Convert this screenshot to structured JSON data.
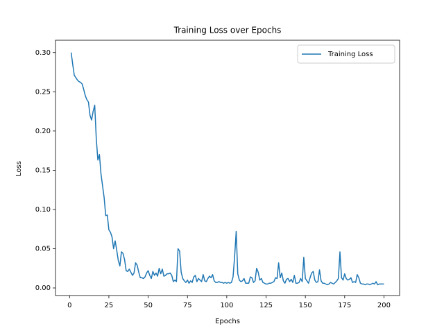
{
  "chart_data": {
    "type": "line",
    "title": "Training Loss over Epochs",
    "x_label": "Epochs",
    "y_label": "Loss",
    "x": [
      1,
      2,
      3,
      4,
      5,
      6,
      7,
      8,
      9,
      10,
      11,
      12,
      13,
      14,
      15,
      16,
      17,
      18,
      19,
      20,
      21,
      22,
      23,
      24,
      25,
      26,
      27,
      28,
      29,
      30,
      31,
      32,
      33,
      34,
      35,
      36,
      37,
      38,
      39,
      40,
      41,
      42,
      43,
      44,
      45,
      46,
      47,
      48,
      49,
      50,
      51,
      52,
      53,
      54,
      55,
      56,
      57,
      58,
      59,
      60,
      61,
      62,
      63,
      64,
      65,
      66,
      67,
      68,
      69,
      70,
      71,
      72,
      73,
      74,
      75,
      76,
      77,
      78,
      79,
      80,
      81,
      82,
      83,
      84,
      85,
      86,
      87,
      88,
      89,
      90,
      91,
      92,
      93,
      94,
      95,
      96,
      97,
      98,
      99,
      100,
      101,
      102,
      103,
      104,
      105,
      106,
      107,
      108,
      109,
      110,
      111,
      112,
      113,
      114,
      115,
      116,
      117,
      118,
      119,
      120,
      121,
      122,
      123,
      124,
      125,
      126,
      127,
      128,
      129,
      130,
      131,
      132,
      133,
      134,
      135,
      136,
      137,
      138,
      139,
      140,
      141,
      142,
      143,
      144,
      145,
      146,
      147,
      148,
      149,
      150,
      151,
      152,
      153,
      154,
      155,
      156,
      157,
      158,
      159,
      160,
      161,
      162,
      163,
      164,
      165,
      166,
      167,
      168,
      169,
      170,
      171,
      172,
      173,
      174,
      175,
      176,
      177,
      178,
      179,
      180,
      181,
      182,
      183,
      184,
      185,
      186,
      187,
      188,
      189,
      190,
      191,
      192,
      193,
      194,
      195,
      196,
      197,
      198,
      199,
      200
    ],
    "series": [
      {
        "name": "Training Loss",
        "color": "#1f77b4",
        "values": [
          0.3,
          0.285,
          0.271,
          0.268,
          0.265,
          0.263,
          0.262,
          0.26,
          0.253,
          0.245,
          0.24,
          0.237,
          0.22,
          0.214,
          0.225,
          0.233,
          0.19,
          0.163,
          0.17,
          0.145,
          0.13,
          0.115,
          0.092,
          0.093,
          0.074,
          0.071,
          0.065,
          0.05,
          0.06,
          0.048,
          0.035,
          0.028,
          0.046,
          0.044,
          0.036,
          0.022,
          0.021,
          0.024,
          0.02,
          0.016,
          0.019,
          0.032,
          0.029,
          0.02,
          0.013,
          0.013,
          0.012,
          0.014,
          0.019,
          0.022,
          0.016,
          0.012,
          0.021,
          0.016,
          0.019,
          0.015,
          0.025,
          0.018,
          0.024,
          0.015,
          0.016,
          0.018,
          0.018,
          0.019,
          0.016,
          0.008,
          0.01,
          0.008,
          0.05,
          0.047,
          0.02,
          0.012,
          0.009,
          0.007,
          0.01,
          0.006,
          0.009,
          0.007,
          0.014,
          0.016,
          0.008,
          0.012,
          0.01,
          0.008,
          0.017,
          0.009,
          0.008,
          0.012,
          0.015,
          0.013,
          0.017,
          0.009,
          0.007,
          0.007,
          0.008,
          0.007,
          0.007,
          0.006,
          0.007,
          0.006,
          0.007,
          0.006,
          0.007,
          0.014,
          0.04,
          0.072,
          0.018,
          0.01,
          0.008,
          0.009,
          0.012,
          0.006,
          0.006,
          0.006,
          0.014,
          0.013,
          0.007,
          0.009,
          0.025,
          0.02,
          0.01,
          0.012,
          0.007,
          0.006,
          0.005,
          0.005,
          0.006,
          0.006,
          0.007,
          0.008,
          0.013,
          0.012,
          0.032,
          0.013,
          0.019,
          0.009,
          0.006,
          0.011,
          0.012,
          0.008,
          0.011,
          0.007,
          0.016,
          0.006,
          0.006,
          0.007,
          0.012,
          0.008,
          0.039,
          0.012,
          0.009,
          0.006,
          0.013,
          0.019,
          0.021,
          0.01,
          0.007,
          0.008,
          0.023,
          0.009,
          0.006,
          0.006,
          0.005,
          0.004,
          0.005,
          0.007,
          0.006,
          0.005,
          0.007,
          0.009,
          0.012,
          0.046,
          0.013,
          0.01,
          0.018,
          0.012,
          0.01,
          0.011,
          0.013,
          0.007,
          0.008,
          0.007,
          0.017,
          0.013,
          0.006,
          0.005,
          0.005,
          0.004,
          0.005,
          0.005,
          0.004,
          0.005,
          0.006,
          0.005,
          0.008,
          0.004,
          0.005,
          0.005,
          0.005,
          0.005
        ]
      }
    ],
    "xlim": [
      -8.95,
      209.95
    ],
    "ylim": [
      -0.0097,
      0.3157
    ],
    "xticks": [
      0,
      25,
      50,
      75,
      100,
      125,
      150,
      175,
      200
    ],
    "yticks": [
      {
        "value": 0,
        "label": "0.00"
      },
      {
        "value": 0.05,
        "label": "0.05"
      },
      {
        "value": 0.1,
        "label": "0.10"
      },
      {
        "value": 0.15,
        "label": "0.15"
      },
      {
        "value": 0.2,
        "label": "0.20"
      },
      {
        "value": 0.25,
        "label": "0.25"
      },
      {
        "value": 0.3,
        "label": "0.30"
      }
    ],
    "legend": "upper right"
  }
}
